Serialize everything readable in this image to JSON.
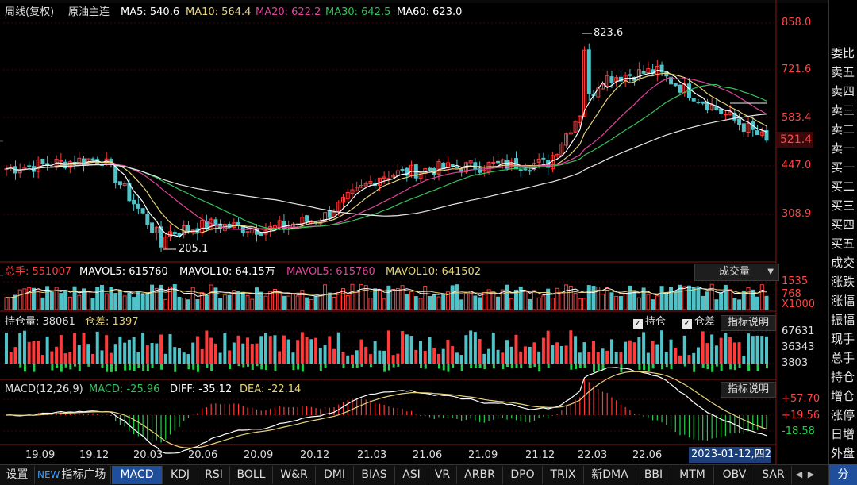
{
  "header": {
    "period": "周线(复权)",
    "symbol": "原油主连",
    "ma": [
      {
        "label": "MA5: 540.6",
        "color": "#ffffff"
      },
      {
        "label": "MA10: 564.4",
        "color": "#e6d27a"
      },
      {
        "label": "MA20: 622.2",
        "color": "#e0459a"
      },
      {
        "label": "MA30: 642.5",
        "color": "#34c25a"
      },
      {
        "label": "MA60: 623.0",
        "color": "#ffffff"
      }
    ]
  },
  "price_axis": {
    "ticks": [
      "858.0",
      "721.6",
      "583.4",
      "447.0",
      "308.9"
    ],
    "last": "521.4"
  },
  "annotations": {
    "high": "823.6",
    "low": "205.1"
  },
  "volume": {
    "total_label": "总手: 551007",
    "mavol5a": "MAVOL5: 615760",
    "mavol10a": "MAVOL10: 64.15万",
    "mavol5b": "MAVOL5: 615760",
    "mavol10b": "MAVOL10: 641502",
    "dropdown": "成交量",
    "ticks": [
      "1535",
      "768"
    ],
    "unit": "X1000"
  },
  "oi": {
    "label": "持仓量: 38061",
    "diff_label": "仓差: 1397",
    "chk_hold": "持仓",
    "chk_diff": "仓差",
    "btn": "指标说明",
    "ticks": [
      "67631",
      "36343",
      "3803"
    ]
  },
  "macd": {
    "title": "MACD(12,26,9)",
    "macd": "MACD: -25.96",
    "diff": "DIFF: -35.12",
    "dea": "DEA: -22.14",
    "btn": "指标说明",
    "ticks": [
      "+57.70",
      "+19.56",
      "-18.58"
    ]
  },
  "time_axis": {
    "labels": [
      "19.09",
      "19.12",
      "20.03",
      "20.06",
      "20.09",
      "20.12",
      "21.03",
      "21.06",
      "21.09",
      "21.12",
      "22.03",
      "22.06"
    ],
    "cursor": "2023-01-12,四2"
  },
  "sidebar": [
    "委比",
    "卖五",
    "卖四",
    "卖三",
    "卖二",
    "卖一",
    "买一",
    "买二",
    "买三",
    "买四",
    "买五",
    "成交",
    "涨跌",
    "涨幅",
    "振幅",
    "现手",
    "总手",
    "持仓",
    "增仓",
    "涨停",
    "日增",
    "外盘"
  ],
  "tabs": {
    "settings": "设置",
    "new_badge": "NEW",
    "plaza": "指标广场",
    "items": [
      "MACD",
      "KDJ",
      "RSI",
      "BOLL",
      "W&R",
      "DMI",
      "BIAS",
      "ASI",
      "VR",
      "ARBR",
      "DPO",
      "TRIX",
      "新DMA",
      "BBI",
      "MTM",
      "OBV",
      "SAR"
    ],
    "active": "MACD",
    "corner": "分"
  },
  "colors": {
    "up": "#ff3b3b",
    "down": "#4fc3c8",
    "neg": "#22d04a",
    "grid": "#7a1010",
    "axis_text": "#ff4444"
  },
  "chart_data": {
    "type": "candlestick",
    "period": "weekly",
    "price_range": [
      205.1,
      858.0
    ],
    "waypoints": [
      {
        "t": "19.09",
        "close": 440
      },
      {
        "t": "19.12",
        "close": 470
      },
      {
        "t": "20.03",
        "close": 250
      },
      {
        "t": "20.06",
        "close": 280
      },
      {
        "t": "20.09",
        "close": 265
      },
      {
        "t": "20.12",
        "close": 300
      },
      {
        "t": "21.03",
        "close": 420
      },
      {
        "t": "21.06",
        "close": 440
      },
      {
        "t": "21.09",
        "close": 450
      },
      {
        "t": "21.12",
        "close": 455
      },
      {
        "t": "22.03",
        "close": 700
      },
      {
        "t": "22.06",
        "close": 720
      },
      {
        "t": "2023-01-12",
        "close": 521.4
      }
    ]
  }
}
